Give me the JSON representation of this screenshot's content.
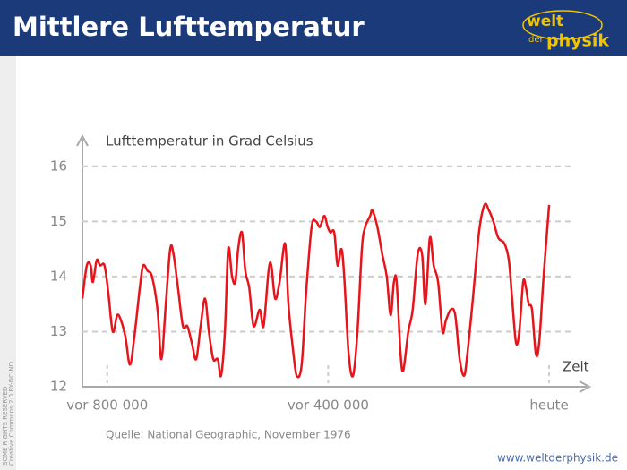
{
  "chart_data": {
    "type": "line",
    "title": "Mittlere Lufttemperatur",
    "y_label": "Lufttemperatur in Grad Celsius",
    "x_label": "Zeit",
    "source": "Quelle: National Geographic, November 1976",
    "xlim": [
      -845000,
      68000
    ],
    "xticks": [
      {
        "value": -800000,
        "label": "vor 800 000"
      },
      {
        "value": -400000,
        "label": "vor 400 000"
      },
      {
        "value": 0,
        "label": "heute"
      }
    ],
    "ylim": [
      12,
      16.5
    ],
    "yticks": [
      12,
      13,
      14,
      15,
      16
    ],
    "grid": true,
    "series": [
      {
        "color": "#e8141b",
        "x": [
          -845000,
          -837000,
          -830000,
          -826000,
          -819000,
          -813000,
          -805000,
          -798000,
          -790000,
          -782000,
          -775000,
          -767000,
          -759000,
          -751000,
          -741000,
          -735000,
          -727000,
          -719000,
          -709000,
          -702000,
          -694000,
          -686000,
          -680000,
          -672000,
          -663000,
          -655000,
          -647000,
          -639000,
          -631000,
          -623000,
          -616000,
          -608000,
          -600000,
          -594000,
          -587000,
          -581000,
          -574000,
          -568000,
          -563000,
          -556000,
          -550000,
          -543000,
          -535000,
          -524000,
          -517000,
          -508000,
          -503000,
          -496000,
          -488000,
          -478000,
          -472000,
          -464000,
          -457000,
          -448000,
          -440000,
          -430000,
          -422000,
          -415000,
          -407000,
          -401000,
          -396000,
          -389000,
          -383000,
          -376000,
          -371000,
          -363000,
          -355000,
          -347000,
          -339000,
          -333000,
          -324000,
          -320000,
          -311000,
          -302000,
          -294000,
          -287000,
          -281000,
          -276000,
          -269000,
          -264000,
          -255000,
          -247000,
          -238000,
          -230000,
          -224000,
          -216000,
          -209000,
          -201000,
          -193000,
          -187000,
          -178000,
          -170000,
          -162000,
          -154000,
          -148000,
          -138000,
          -127000,
          -117000,
          -109000,
          -101000,
          -92000,
          -81000,
          -73000,
          -67000,
          -60000,
          -54000,
          -47000,
          -42000,
          -37000,
          -31000,
          -24000,
          -18000,
          -10000,
          0
        ],
        "values": [
          13.6,
          14.2,
          14.2,
          13.9,
          14.3,
          14.2,
          14.2,
          13.7,
          13.0,
          13.3,
          13.2,
          12.9,
          12.4,
          12.9,
          13.8,
          14.2,
          14.1,
          14.0,
          13.4,
          12.5,
          13.5,
          14.5,
          14.4,
          13.8,
          13.1,
          13.1,
          12.8,
          12.5,
          13.1,
          13.6,
          13.0,
          12.5,
          12.5,
          12.2,
          13.0,
          14.5,
          14.0,
          13.9,
          14.5,
          14.8,
          14.1,
          13.8,
          13.1,
          13.4,
          13.1,
          14.1,
          14.2,
          13.6,
          13.9,
          14.6,
          13.5,
          12.7,
          12.2,
          12.4,
          13.7,
          14.9,
          15.0,
          14.9,
          15.1,
          14.9,
          14.8,
          14.8,
          14.2,
          14.5,
          14.0,
          12.6,
          12.2,
          13.0,
          14.5,
          14.9,
          15.1,
          15.2,
          14.9,
          14.4,
          14.0,
          13.3,
          13.9,
          13.9,
          12.6,
          12.3,
          13.0,
          13.4,
          14.4,
          14.4,
          13.5,
          14.7,
          14.2,
          13.9,
          13.0,
          13.2,
          13.4,
          13.3,
          12.5,
          12.2,
          12.6,
          13.6,
          14.8,
          15.3,
          15.2,
          15.0,
          14.7,
          14.6,
          14.3,
          13.6,
          12.8,
          13.0,
          13.9,
          13.8,
          13.5,
          13.4,
          12.6,
          12.8,
          14.0,
          15.3
        ]
      }
    ]
  },
  "logo": {
    "top": "welt",
    "middle": "der",
    "bottom": "physik"
  },
  "license": {
    "line1": "SOME RIGHTS RESERVED",
    "line2": "Creative Commons 2.0 BY-NC-ND"
  },
  "footer": "www.weltderphysik.de"
}
